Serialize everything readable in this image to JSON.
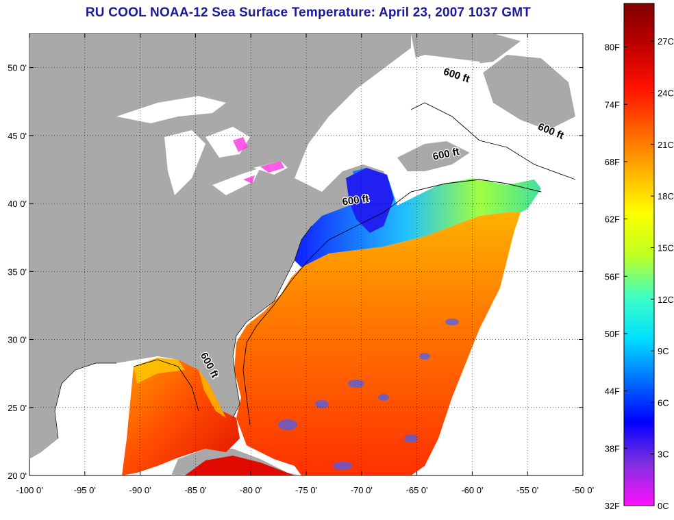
{
  "title": "RU COOL  NOAA-12  Sea Surface Temperature:  April 23, 2007 1037 GMT",
  "map": {
    "lon_range": [
      -100,
      -50
    ],
    "lat_range": [
      20,
      52.5
    ],
    "lon_ticks": [
      {
        "value": -100,
        "label": "-100 0'"
      },
      {
        "value": -95,
        "label": "-95 0'"
      },
      {
        "value": -90,
        "label": "-90 0'"
      },
      {
        "value": -85,
        "label": "-85 0'"
      },
      {
        "value": -80,
        "label": "-80 0'"
      },
      {
        "value": -75,
        "label": "-75 0'"
      },
      {
        "value": -70,
        "label": "-70 0'"
      },
      {
        "value": -65,
        "label": "-65 0'"
      },
      {
        "value": -60,
        "label": "-60 0'"
      },
      {
        "value": -55,
        "label": "-55 0'"
      },
      {
        "value": -50,
        "label": "-50 0'"
      }
    ],
    "lat_ticks": [
      {
        "value": 20,
        "label": "20 0'"
      },
      {
        "value": 25,
        "label": "25 0'"
      },
      {
        "value": 30,
        "label": "30 0'"
      },
      {
        "value": 35,
        "label": "35 0'"
      },
      {
        "value": 40,
        "label": "40 0'"
      },
      {
        "value": 45,
        "label": "45 0'"
      },
      {
        "value": 50,
        "label": "50 0'"
      }
    ],
    "grid": true,
    "isobath_labels": [
      {
        "text": "600 ft",
        "lon": -61.5,
        "lat": 49.2,
        "rot": 18
      },
      {
        "text": "600 ft",
        "lon": -53.0,
        "lat": 45.1,
        "rot": 22
      },
      {
        "text": "600 ft",
        "lon": -62.3,
        "lat": 43.4,
        "rot": -12
      },
      {
        "text": "600 ft",
        "lon": -70.5,
        "lat": 40.0,
        "rot": -8
      },
      {
        "text": "600 ft",
        "lon": -84.0,
        "lat": 28.0,
        "rot": 62
      }
    ],
    "colors": {
      "land": "#a9a9a9",
      "background": "#ffffff",
      "no_data": "#ffffff"
    }
  },
  "colorbar": {
    "f_labels": [
      "32F",
      "38F",
      "44F",
      "50F",
      "56F",
      "62F",
      "68F",
      "74F",
      "80F"
    ],
    "c_labels": [
      "0C",
      "3C",
      "6C",
      "9C",
      "12C",
      "15C",
      "18C",
      "21C",
      "24C",
      "27C"
    ],
    "stops": [
      "#ff10ff",
      "#8030e0",
      "#0000ff",
      "#0070ff",
      "#00e0ff",
      "#40ffc0",
      "#c0ff20",
      "#ffff00",
      "#ffb000",
      "#ff6000",
      "#ff1000",
      "#c00000",
      "#800000"
    ]
  }
}
